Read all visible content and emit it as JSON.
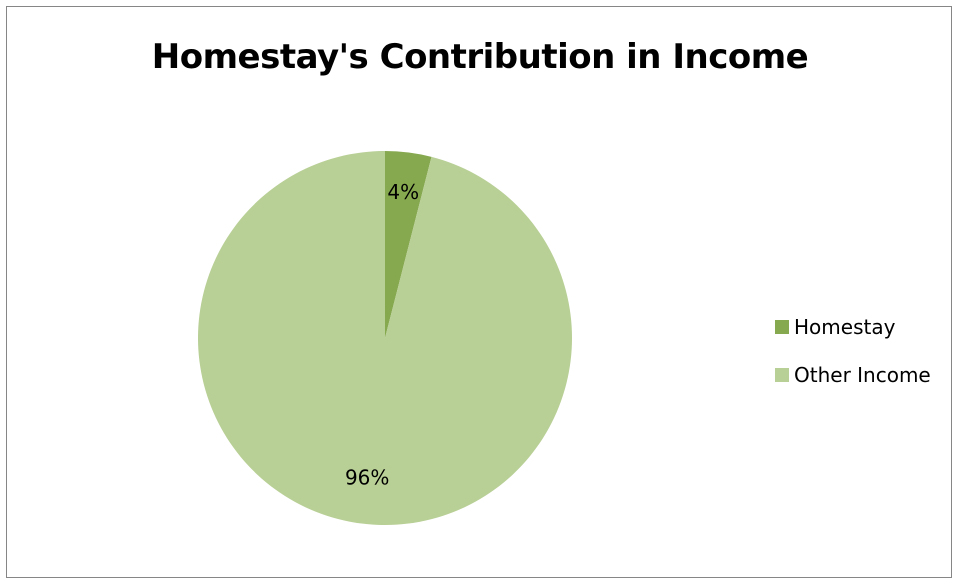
{
  "chart_data": {
    "type": "pie",
    "title": "Homestay's Contribution in Income",
    "categories": [
      "Homestay",
      "Other Income"
    ],
    "values": [
      4,
      96
    ],
    "value_labels": [
      "4%",
      "96%"
    ],
    "colors": [
      "#86a84f",
      "#b8cf95"
    ],
    "legend_position": "right"
  }
}
